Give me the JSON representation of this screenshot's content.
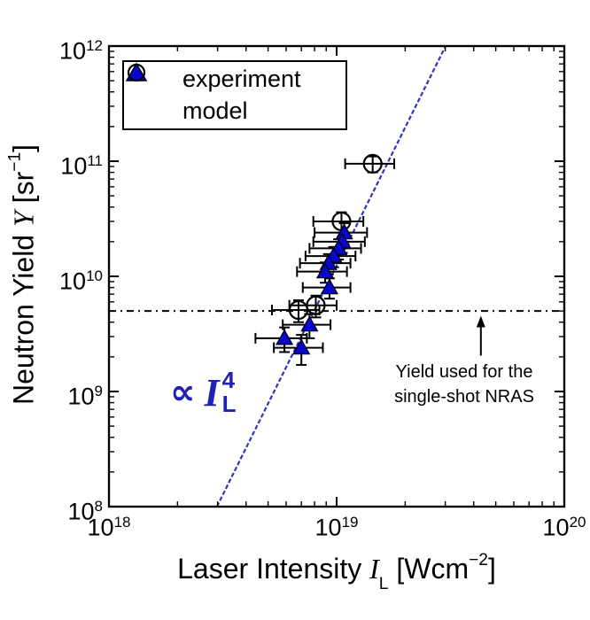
{
  "colors": {
    "experiment_fill": "#0707cf",
    "fit_line": "#3434c2",
    "prop_label": "#2121b5",
    "axis": "#000000",
    "background": "#ffffff"
  },
  "chart_data": {
    "type": "scatter",
    "xscale": "log",
    "yscale": "log",
    "grid": false,
    "xlabel": "Laser Intensity I_L [Wcm−2]",
    "ylabel": "Neutron Yield Y [sr−1]",
    "xlabel_parts": [
      {
        "t": "Laser Intensity "
      },
      {
        "t": "I",
        "style": "italic"
      },
      {
        "t": "L",
        "style": "sub"
      },
      {
        "t": " [Wcm"
      },
      {
        "t": "−2",
        "style": "sup"
      },
      {
        "t": "]"
      }
    ],
    "ylabel_parts": [
      {
        "t": "Neutron Yield "
      },
      {
        "t": "Y",
        "style": "italic"
      },
      {
        "t": " [sr"
      },
      {
        "t": "−1",
        "style": "sup"
      },
      {
        "t": "]"
      }
    ],
    "tick_base": "10",
    "xlim_exponents": [
      18,
      20
    ],
    "ylim_exponents": [
      8,
      12
    ],
    "x_tick_exponents": [
      18,
      19,
      20
    ],
    "y_tick_exponents": [
      12,
      11,
      10,
      9,
      8
    ],
    "legend": {
      "position": "top-left",
      "entries": [
        {
          "marker": "triangle-filled",
          "label": "experiment",
          "color": "#0707cf"
        },
        {
          "marker": "circle-open",
          "label": "model",
          "color": "#000000"
        }
      ]
    },
    "series": [
      {
        "name": "model",
        "marker": "circle",
        "color": "#000000",
        "points": [
          {
            "x": 1.44e+19,
            "y": 95000000000.0,
            "xerr": 3.5e+18,
            "yerr": 15000000000.0
          },
          {
            "x": 1.05e+19,
            "y": 30000000000.0,
            "xerr": 2.6e+18,
            "yerr": 6000000000.0
          },
          {
            "x": 8.1e+18,
            "y": 5600000000.0,
            "xerr": 1.9e+18,
            "yerr": 1200000000.0
          },
          {
            "x": 6.8e+18,
            "y": 5100000000.0,
            "xerr": 1.6e+18,
            "yerr": 1100000000.0
          }
        ]
      },
      {
        "name": "experiment",
        "marker": "triangle",
        "color": "#0707cf",
        "points": [
          {
            "x": 1.08e+19,
            "y": 24000000000.0,
            "xerr": 2.8e+18,
            "yerr": 5000000000.0
          },
          {
            "x": 1.06e+19,
            "y": 20000000000.0,
            "xerr": 2.7e+18,
            "yerr": 4000000000.0
          },
          {
            "x": 1.02e+19,
            "y": 17500000000.0,
            "xerr": 2.6e+18,
            "yerr": 3500000000.0
          },
          {
            "x": 9.7e+18,
            "y": 15000000000.0,
            "xerr": 2.4e+18,
            "yerr": 3000000000.0
          },
          {
            "x": 9.2e+18,
            "y": 13000000000.0,
            "xerr": 2.3e+18,
            "yerr": 2600000000.0
          },
          {
            "x": 8.9e+18,
            "y": 11000000000.0,
            "xerr": 2.2e+18,
            "yerr": 2200000000.0
          },
          {
            "x": 9.3e+18,
            "y": 8000000000.0,
            "xerr": 2.2e+18,
            "yerr": 1600000000.0
          },
          {
            "x": 7.6e+18,
            "y": 3800000000.0,
            "xerr": 1.8e+18,
            "yerr": 900000000.0
          },
          {
            "x": 5.9e+18,
            "y": 2900000000.0,
            "xerr": 1.5e+18,
            "yerr": 700000000.0
          },
          {
            "x": 7e+18,
            "y": 2400000000.0,
            "xerr": 1.7e+18,
            "yerr": 700000000.0
          }
        ]
      }
    ],
    "fit_line": {
      "x1": 2.98e+18,
      "y1": 100000000.0,
      "x2": 3.01e+19,
      "y2": 1000000000000.0,
      "slope_decades": 4,
      "style": "dashed",
      "color": "#3434c2",
      "label": {
        "symbol": "∝",
        "variable": "I",
        "sup": "4",
        "sub": "L"
      },
      "label_color": "#2121b5"
    },
    "reference_line": {
      "y": 5000000000.0,
      "style": "dash-dot",
      "color": "#000000"
    },
    "annotation": {
      "lines": [
        "Yield used for the",
        "single-shot NRAS"
      ],
      "arrow_x": 4.3e+19,
      "arrow_y_from": 2050000000.0,
      "arrow_y_to": 4550000000.0
    }
  }
}
